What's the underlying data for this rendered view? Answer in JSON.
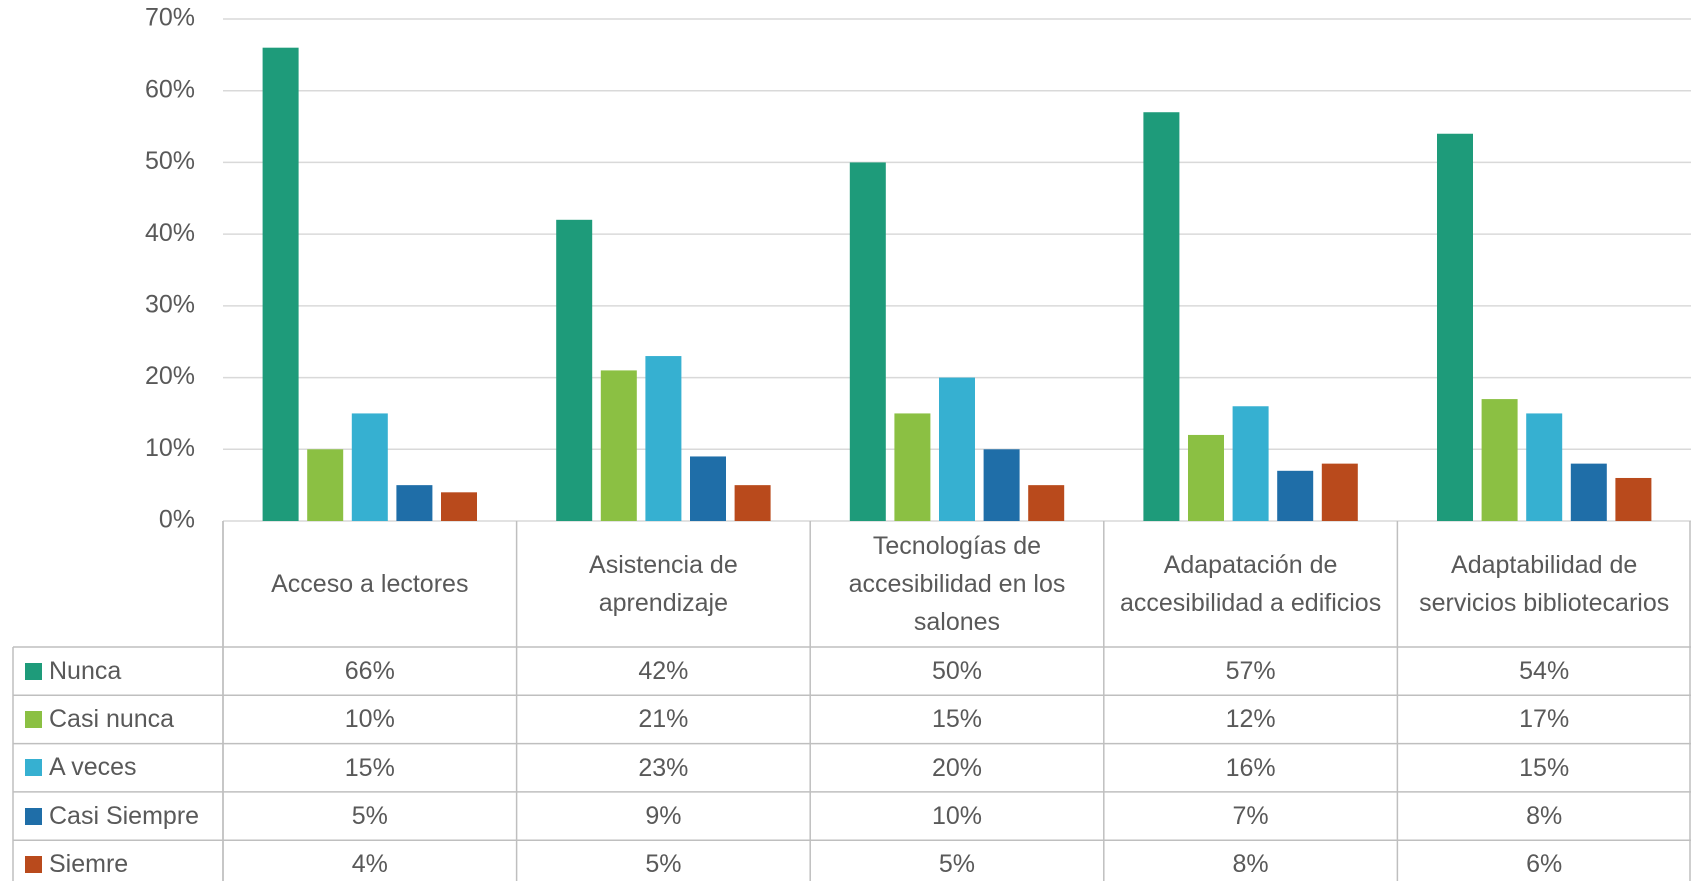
{
  "chart_data": {
    "type": "bar",
    "categories": [
      "Acceso a lectores",
      "Asistencia de aprendizaje",
      "Tecnologías de accesibilidad en los salones",
      "Adapatación de accesibilidad a edificios",
      "Adaptabilidad de servicios bibliotecarios"
    ],
    "series": [
      {
        "name": "Nunca",
        "color": "#1e9b7a",
        "values": [
          66,
          42,
          50,
          57,
          54
        ],
        "value_labels": [
          "66%",
          "42%",
          "50%",
          "57%",
          "54%"
        ]
      },
      {
        "name": "Casi nunca",
        "color": "#8bc043",
        "values": [
          10,
          21,
          15,
          12,
          17
        ],
        "value_labels": [
          "10%",
          "21%",
          "15%",
          "12%",
          "17%"
        ]
      },
      {
        "name": "A veces",
        "color": "#36b0d1",
        "values": [
          15,
          23,
          20,
          16,
          15
        ],
        "value_labels": [
          "15%",
          "23%",
          "20%",
          "16%",
          "15%"
        ]
      },
      {
        "name": "Casi Siempre",
        "color": "#1f6ea8",
        "values": [
          5,
          9,
          10,
          7,
          8
        ],
        "value_labels": [
          "5%",
          "9%",
          "10%",
          "7%",
          "8%"
        ]
      },
      {
        "name": "Siemre",
        "color": "#b94a1c",
        "values": [
          4,
          5,
          5,
          8,
          6
        ],
        "value_labels": [
          "4%",
          "5%",
          "5%",
          "8%",
          "6%"
        ]
      }
    ],
    "ylim": [
      0,
      70
    ],
    "yticks": [
      {
        "value": 0,
        "label": "0%"
      },
      {
        "value": 10,
        "label": "10%"
      },
      {
        "value": 20,
        "label": "20%"
      },
      {
        "value": 30,
        "label": "30%"
      },
      {
        "value": 40,
        "label": "40%"
      },
      {
        "value": 50,
        "label": "50%"
      },
      {
        "value": 60,
        "label": "60%"
      },
      {
        "value": 70,
        "label": "70%"
      }
    ],
    "grid": true
  }
}
